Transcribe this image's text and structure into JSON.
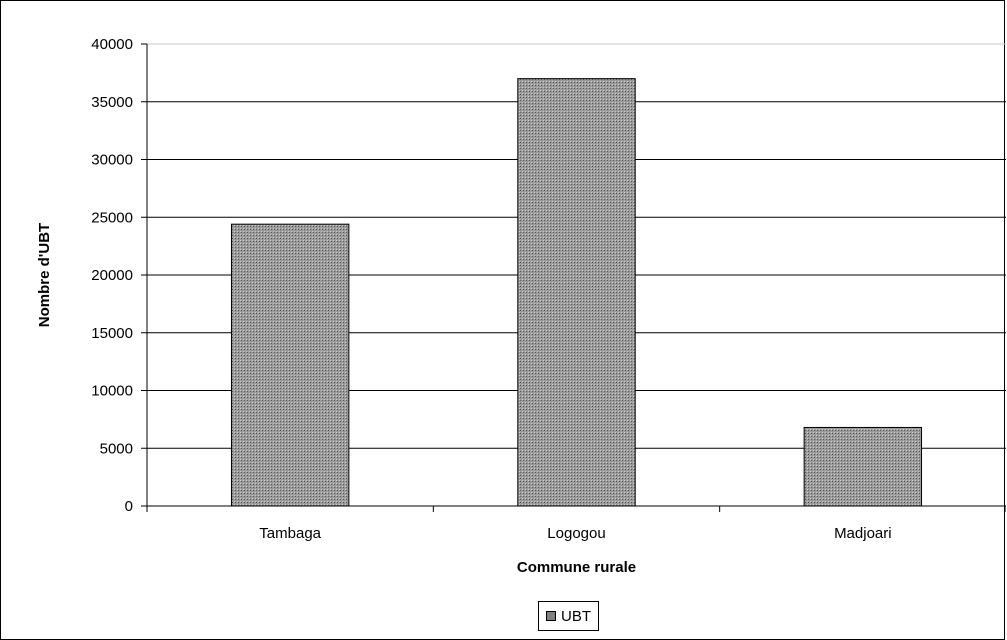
{
  "chart_data": {
    "type": "bar",
    "categories": [
      "Tambaga",
      "Logogou",
      "Madjoari"
    ],
    "series": [
      {
        "name": "UBT",
        "values": [
          24400,
          37000,
          6800
        ]
      }
    ],
    "xlabel": "Commune rurale",
    "ylabel": "Nombre d'UBT",
    "ylim": [
      0,
      40000
    ],
    "yticks": [
      0,
      5000,
      10000,
      15000,
      20000,
      25000,
      30000,
      35000,
      40000
    ],
    "grid": true,
    "legend_position": "bottom",
    "bar_fill": "#8c8c8c",
    "bar_pattern": "crosshatch"
  }
}
